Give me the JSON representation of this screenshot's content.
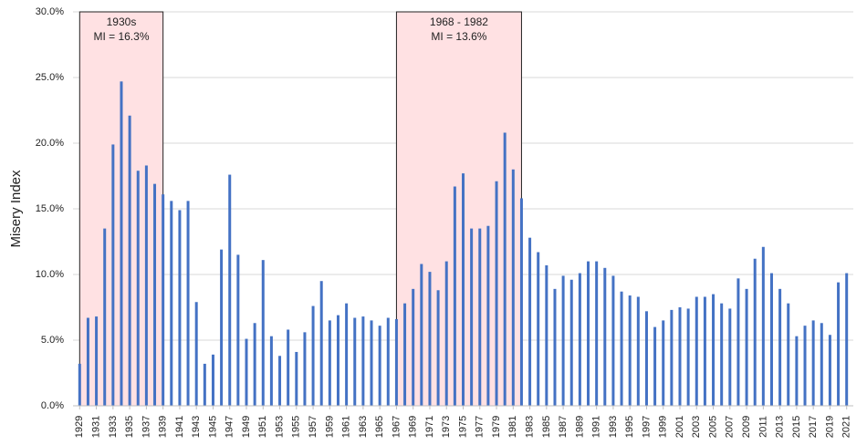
{
  "chart_data": {
    "type": "bar",
    "y_label": "Misery Index",
    "x": [
      1929,
      1930,
      1931,
      1932,
      1933,
      1934,
      1935,
      1936,
      1937,
      1938,
      1939,
      1940,
      1941,
      1942,
      1943,
      1944,
      1945,
      1946,
      1947,
      1948,
      1949,
      1950,
      1951,
      1952,
      1953,
      1954,
      1955,
      1956,
      1957,
      1958,
      1959,
      1960,
      1961,
      1962,
      1963,
      1964,
      1965,
      1966,
      1967,
      1968,
      1969,
      1970,
      1971,
      1972,
      1973,
      1974,
      1975,
      1976,
      1977,
      1978,
      1979,
      1980,
      1981,
      1982,
      1983,
      1984,
      1985,
      1986,
      1987,
      1988,
      1989,
      1990,
      1991,
      1992,
      1993,
      1994,
      1995,
      1996,
      1997,
      1998,
      1999,
      2000,
      2001,
      2002,
      2003,
      2004,
      2005,
      2006,
      2007,
      2008,
      2009,
      2010,
      2011,
      2012,
      2013,
      2014,
      2015,
      2016,
      2017,
      2018,
      2019,
      2020,
      2021
    ],
    "values": [
      3.2,
      6.7,
      6.8,
      13.5,
      19.9,
      24.7,
      22.1,
      17.9,
      18.3,
      16.9,
      16.1,
      15.6,
      14.9,
      15.6,
      7.9,
      3.2,
      3.9,
      11.9,
      17.6,
      11.5,
      5.1,
      6.3,
      11.1,
      5.3,
      3.8,
      5.8,
      4.1,
      5.6,
      7.6,
      9.5,
      6.5,
      6.9,
      7.8,
      6.7,
      6.8,
      6.5,
      6.1,
      6.7,
      6.6,
      7.8,
      8.9,
      10.8,
      10.2,
      8.8,
      11.0,
      16.7,
      17.7,
      13.5,
      13.5,
      13.7,
      17.1,
      20.8,
      18.0,
      15.8,
      12.8,
      11.7,
      10.7,
      8.9,
      9.9,
      9.6,
      10.1,
      11.0,
      11.0,
      10.5,
      9.9,
      8.7,
      8.4,
      8.3,
      7.2,
      6.0,
      6.5,
      7.3,
      7.5,
      7.4,
      8.3,
      8.3,
      8.5,
      7.8,
      7.4,
      9.7,
      8.9,
      11.2,
      12.1,
      10.1,
      8.9,
      7.8,
      5.3,
      6.1,
      6.5,
      6.3,
      5.4,
      9.4,
      10.1
    ],
    "color": "#4472c4",
    "xlim": [
      1928.2,
      2021.8
    ],
    "xticks": [
      1929,
      1931,
      1933,
      1935,
      1937,
      1939,
      1941,
      1943,
      1945,
      1947,
      1949,
      1951,
      1953,
      1955,
      1957,
      1959,
      1961,
      1963,
      1965,
      1967,
      1969,
      1971,
      1973,
      1975,
      1977,
      1979,
      1981,
      1983,
      1985,
      1987,
      1989,
      1991,
      1993,
      1995,
      1997,
      1999,
      2001,
      2003,
      2005,
      2007,
      2009,
      2011,
      2013,
      2015,
      2017,
      2019,
      2021
    ],
    "ylim": [
      0,
      30
    ],
    "yticks": [
      {
        "value": 0,
        "label": "0.0%"
      },
      {
        "value": 5,
        "label": "5.0%"
      },
      {
        "value": 10,
        "label": "10.0%"
      },
      {
        "value": 15,
        "label": "15.0%"
      },
      {
        "value": 20,
        "label": "20.0%"
      },
      {
        "value": 25,
        "label": "25.0%"
      },
      {
        "value": 30,
        "label": "30.0%"
      }
    ],
    "grid": true,
    "annotations": [
      {
        "lines": [
          "1930s",
          "MI = 16.3%"
        ],
        "x": [
          1929,
          1939
        ]
      },
      {
        "lines": [
          "1968 - 1982",
          "MI = 13.6%"
        ],
        "x": [
          1967,
          1982
        ]
      }
    ]
  }
}
